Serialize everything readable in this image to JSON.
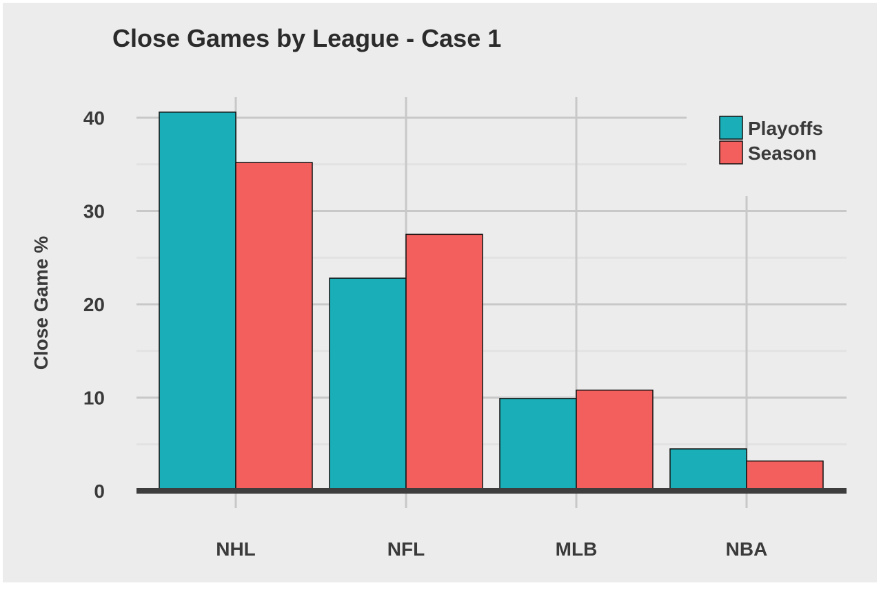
{
  "chart_data": {
    "type": "bar",
    "title": "Close Games by League - Case 1",
    "xlabel": "",
    "ylabel": "Close Game %",
    "categories": [
      "NHL",
      "NFL",
      "MLB",
      "NBA"
    ],
    "series": [
      {
        "name": "Playoffs",
        "color": "#1aafb8",
        "values": [
          40.6,
          22.8,
          9.9,
          4.5
        ]
      },
      {
        "name": "Season",
        "color": "#f35f5c",
        "values": [
          35.2,
          27.5,
          10.8,
          3.2
        ]
      }
    ],
    "ylim": [
      0,
      42
    ],
    "yticks": [
      0,
      10,
      20,
      30,
      40
    ],
    "grid": true,
    "legend_position": "top-right"
  }
}
